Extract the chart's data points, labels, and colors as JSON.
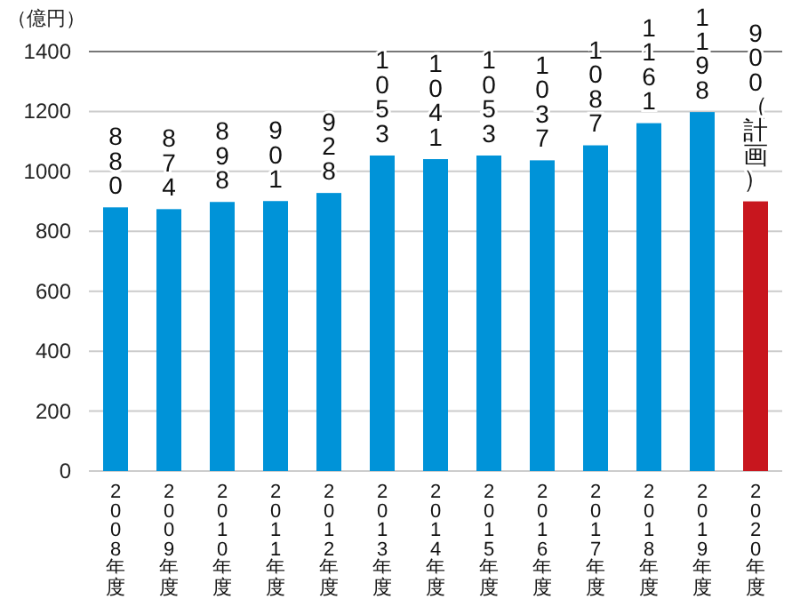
{
  "chart_data": {
    "type": "bar",
    "ylabel": "（億円）",
    "categories": [
      "2008年度",
      "2009年度",
      "2010年度",
      "2011年度",
      "2012年度",
      "2013年度",
      "2014年度",
      "2015年度",
      "2016年度",
      "2017年度",
      "2018年度",
      "2019年度",
      "2020年度"
    ],
    "values": [
      880,
      874,
      898,
      901,
      928,
      1053,
      1041,
      1053,
      1037,
      1087,
      1161,
      1198,
      900
    ],
    "value_labels": [
      "880",
      "874",
      "898",
      "901",
      "928",
      "1053",
      "1041",
      "1053",
      "1037",
      "1087",
      "1161",
      "1198",
      "900（計画）"
    ],
    "colors": [
      "#0093d8",
      "#0093d8",
      "#0093d8",
      "#0093d8",
      "#0093d8",
      "#0093d8",
      "#0093d8",
      "#0093d8",
      "#0093d8",
      "#0093d8",
      "#0093d8",
      "#0093d8",
      "#c8161e"
    ],
    "ylim": [
      0,
      1400
    ],
    "yticks": [
      0,
      200,
      400,
      600,
      800,
      1000,
      1200,
      1400
    ],
    "grid": "y"
  }
}
